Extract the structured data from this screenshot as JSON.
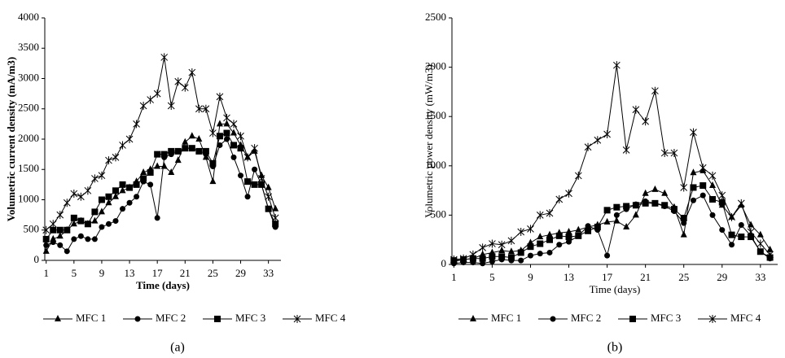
{
  "chart_data": [
    {
      "type": "line",
      "caption": "(a)",
      "y_label": "Volumetric current density (mA/m3)",
      "x_label": "Time (days)",
      "x": [
        1,
        2,
        3,
        4,
        5,
        6,
        7,
        8,
        9,
        10,
        11,
        12,
        13,
        14,
        15,
        16,
        17,
        18,
        19,
        20,
        21,
        22,
        23,
        24,
        25,
        26,
        27,
        28,
        29,
        30,
        31,
        32,
        33,
        34
      ],
      "xlim": [
        0.8,
        34.8
      ],
      "xticks": [
        1,
        5,
        9,
        13,
        17,
        21,
        25,
        29,
        33
      ],
      "ylim": [
        0,
        4000
      ],
      "yticks": [
        0,
        500,
        1000,
        1500,
        2000,
        2500,
        3000,
        3500,
        4000
      ],
      "series": [
        {
          "name": "MFC 1",
          "color": "#000000",
          "marker": "triangle",
          "values": [
            150,
            350,
            400,
            500,
            600,
            650,
            600,
            650,
            800,
            950,
            1050,
            1150,
            1200,
            1300,
            1450,
            1500,
            1550,
            1550,
            1450,
            1650,
            1950,
            2050,
            2000,
            1700,
            1300,
            2250,
            2250,
            2100,
            1900,
            1700,
            1800,
            1400,
            1200,
            850
          ]
        },
        {
          "name": "MFC 2",
          "color": "#000000",
          "marker": "circle",
          "values": [
            250,
            300,
            250,
            150,
            350,
            400,
            350,
            350,
            550,
            600,
            650,
            850,
            950,
            1050,
            1300,
            1250,
            700,
            1700,
            1750,
            1800,
            1850,
            1850,
            1800,
            1750,
            1550,
            1900,
            2000,
            1700,
            1400,
            1050,
            1500,
            1250,
            850,
            550
          ]
        },
        {
          "name": "MFC 3",
          "color": "#000000",
          "marker": "square",
          "values": [
            350,
            500,
            500,
            500,
            700,
            650,
            600,
            800,
            1000,
            1050,
            1150,
            1250,
            1200,
            1250,
            1350,
            1450,
            1750,
            1750,
            1800,
            1800,
            1850,
            1850,
            1800,
            1800,
            1600,
            2050,
            2100,
            1900,
            1850,
            1300,
            1250,
            1250,
            850,
            600
          ]
        },
        {
          "name": "MFC 4",
          "color": "#000000",
          "marker": "star",
          "values": [
            500,
            600,
            750,
            950,
            1100,
            1050,
            1150,
            1350,
            1400,
            1650,
            1700,
            1900,
            2000,
            2250,
            2550,
            2650,
            2750,
            3350,
            2550,
            2950,
            2850,
            3100,
            2500,
            2500,
            2100,
            2700,
            2350,
            2250,
            2050,
            1700,
            1850,
            1350,
            1050,
            700
          ]
        }
      ]
    },
    {
      "type": "line",
      "caption": "(b)",
      "y_label": "Volumetric power density (mW/m3)",
      "x_label": "Time (days)",
      "x": [
        1,
        2,
        3,
        4,
        5,
        6,
        7,
        8,
        9,
        10,
        11,
        12,
        13,
        14,
        15,
        16,
        17,
        18,
        19,
        20,
        21,
        22,
        23,
        24,
        25,
        26,
        27,
        28,
        29,
        30,
        31,
        32,
        33,
        34
      ],
      "xlim": [
        0.8,
        34.8
      ],
      "xticks": [
        1,
        5,
        9,
        13,
        17,
        21,
        25,
        29,
        33
      ],
      "ylim": [
        0,
        2500
      ],
      "yticks": [
        0,
        500,
        1000,
        1500,
        2000,
        2500
      ],
      "series": [
        {
          "name": "MFC 1",
          "color": "#000000",
          "marker": "triangle",
          "values": [
            30,
            50,
            60,
            100,
            120,
            140,
            130,
            140,
            220,
            280,
            300,
            320,
            330,
            350,
            380,
            400,
            430,
            440,
            380,
            500,
            720,
            760,
            720,
            580,
            300,
            930,
            950,
            800,
            600,
            480,
            600,
            400,
            300,
            150
          ]
        },
        {
          "name": "MFC 2",
          "color": "#000000",
          "marker": "circle",
          "values": [
            10,
            20,
            20,
            10,
            30,
            50,
            40,
            40,
            90,
            110,
            120,
            200,
            230,
            290,
            390,
            350,
            90,
            500,
            560,
            610,
            640,
            620,
            590,
            540,
            420,
            650,
            700,
            500,
            350,
            200,
            400,
            290,
            130,
            60
          ]
        },
        {
          "name": "MFC 3",
          "color": "#000000",
          "marker": "square",
          "values": [
            40,
            50,
            60,
            60,
            80,
            80,
            70,
            120,
            180,
            210,
            250,
            290,
            280,
            290,
            340,
            380,
            550,
            580,
            590,
            600,
            620,
            620,
            600,
            560,
            470,
            780,
            800,
            660,
            630,
            300,
            280,
            280,
            130,
            70
          ]
        },
        {
          "name": "MFC 4",
          "color": "#000000",
          "marker": "star",
          "values": [
            50,
            60,
            100,
            170,
            210,
            200,
            240,
            330,
            360,
            500,
            520,
            660,
            720,
            900,
            1190,
            1260,
            1320,
            2020,
            1160,
            1570,
            1450,
            1760,
            1130,
            1130,
            780,
            1340,
            980,
            900,
            700,
            480,
            620,
            330,
            210,
            100
          ]
        }
      ]
    }
  ]
}
